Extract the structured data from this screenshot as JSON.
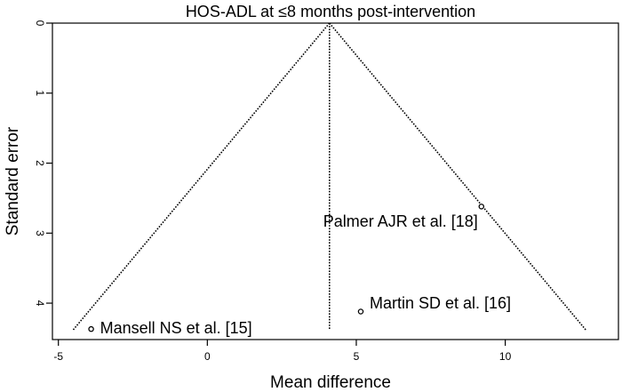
{
  "chart_data": {
    "type": "scatter",
    "subtype": "funnel",
    "title": "HOS-ADL at ≤8 months post-intervention",
    "xlabel": "Mean difference",
    "ylabel": "Standard error",
    "xlim": [
      -5.2,
      13.8
    ],
    "ylim": [
      0,
      4.52
    ],
    "y_reversed": true,
    "x_ticks": [
      -5,
      0,
      5,
      10
    ],
    "x_tick_labels": [
      "-5",
      "0",
      "5",
      "10"
    ],
    "y_ticks": [
      0,
      1,
      2,
      3,
      4
    ],
    "y_tick_labels": [
      "0",
      "1",
      "2",
      "3",
      "4"
    ],
    "pooled_estimate": 4.1,
    "funnel": {
      "apex": [
        4.1,
        0
      ],
      "bottom_left": [
        -4.5,
        4.38
      ],
      "bottom_right": [
        12.7,
        4.38
      ]
    },
    "points": [
      {
        "label": "Mansell NS et al. [15]",
        "x": -3.9,
        "y": 4.37
      },
      {
        "label": "Martin SD et al. [16]",
        "x": 5.15,
        "y": 4.12
      },
      {
        "label": "Palmer AJR et al. [18]",
        "x": 9.2,
        "y": 2.62
      }
    ]
  }
}
